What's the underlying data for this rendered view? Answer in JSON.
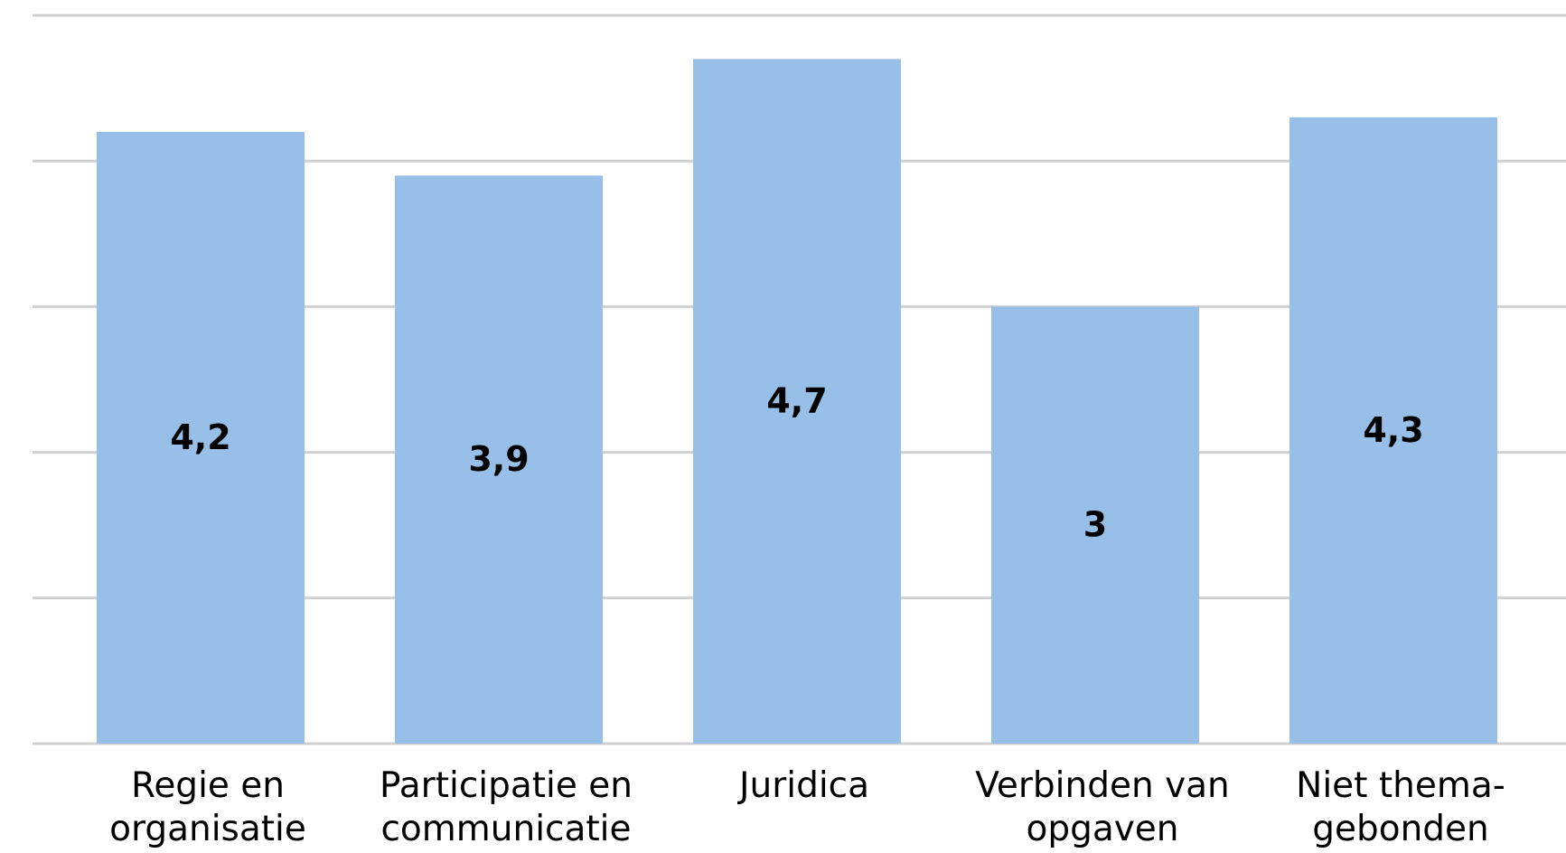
{
  "chart_data": {
    "type": "bar",
    "categories": [
      "Regie en organisatie",
      "Participatie en communicatie",
      "Juridica",
      "Verbinden van opgaven",
      "Niet thema-gebonden"
    ],
    "values": [
      4.2,
      3.9,
      4.7,
      3,
      4.3
    ],
    "value_labels": [
      "4,2",
      "3,9",
      "4,7",
      "3",
      "4,3"
    ],
    "color": "#97bfe7",
    "ylim": [
      0,
      5
    ],
    "yticks": [
      0,
      1,
      2,
      3,
      4,
      5
    ],
    "grid": true
  }
}
